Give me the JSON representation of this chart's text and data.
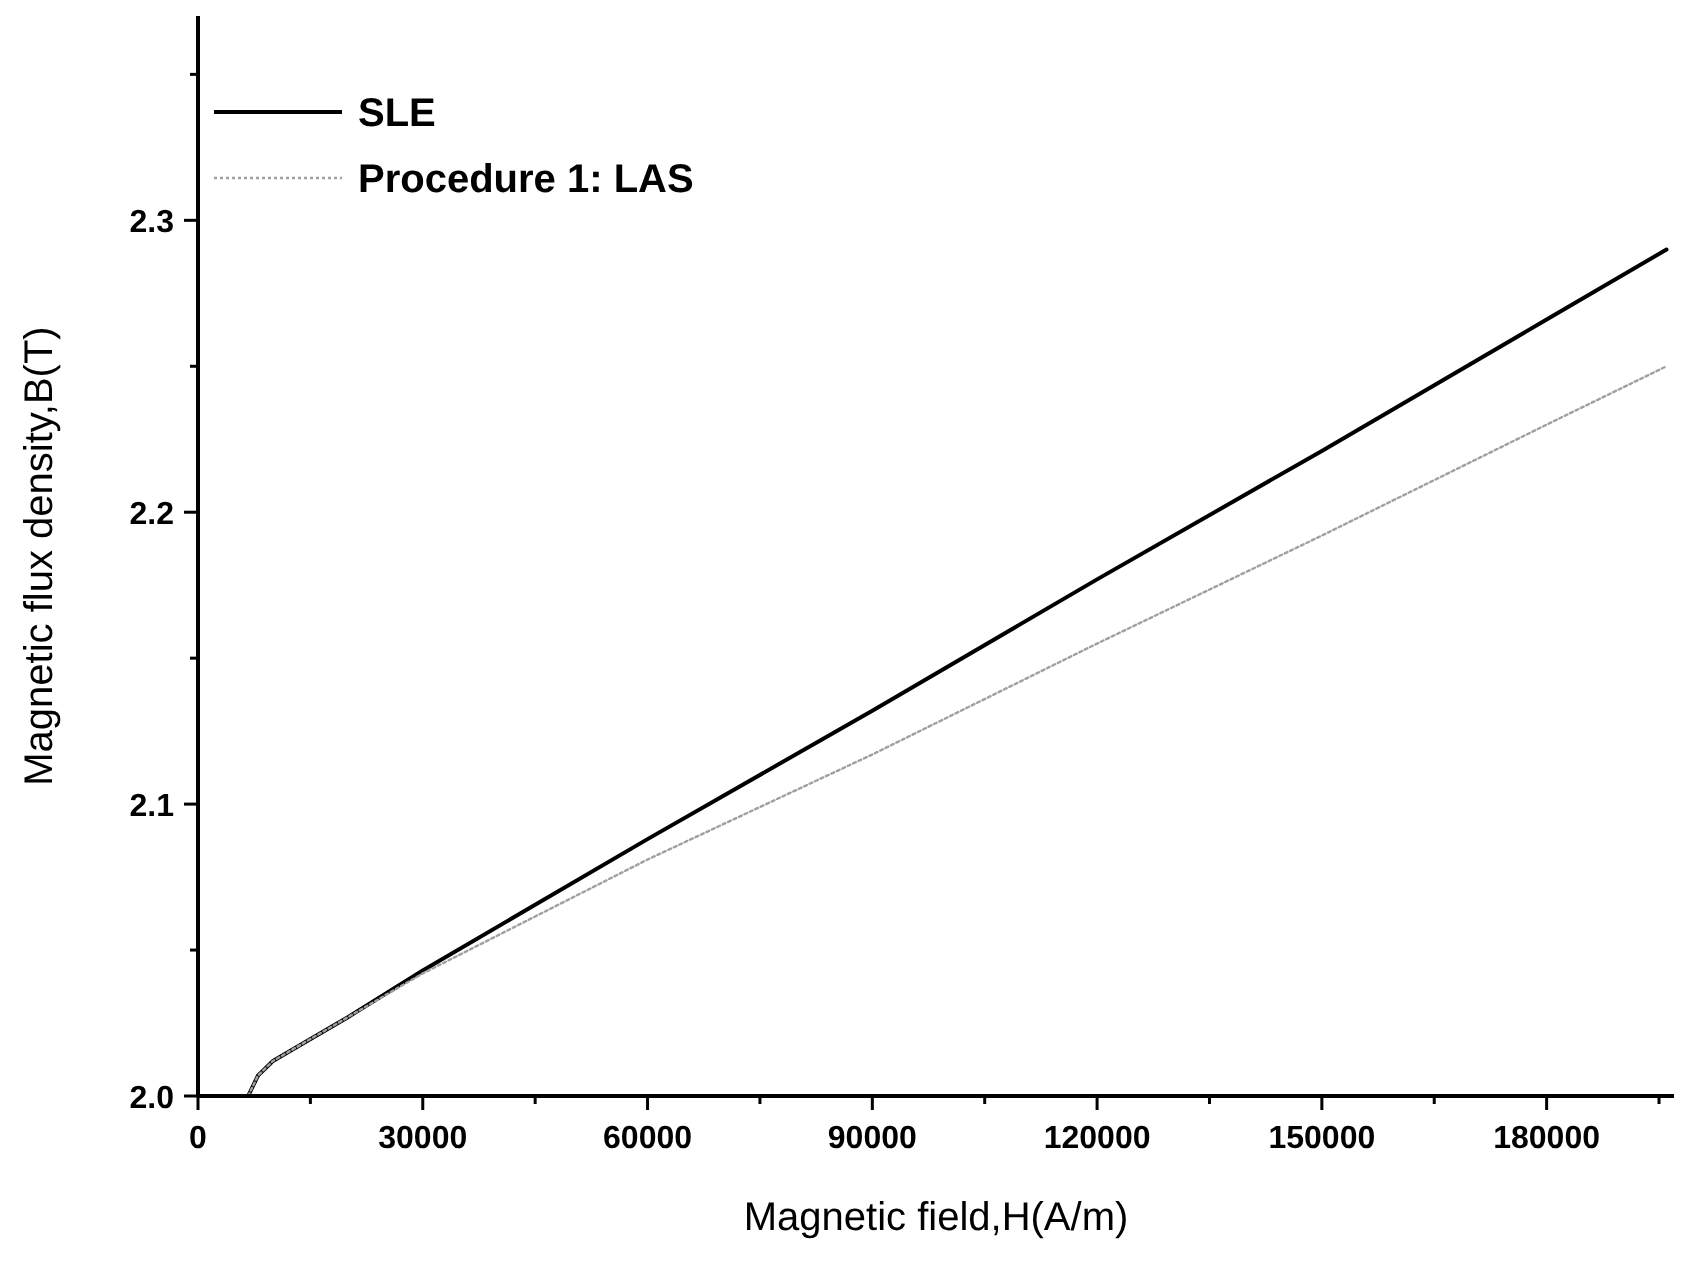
{
  "chart_data": {
    "type": "line",
    "xlabel": "Magnetic field,H(A/m)",
    "ylabel": "Magnetic flux density,B(T)",
    "xlim": [
      0,
      197000
    ],
    "ylim": [
      2.0,
      2.37
    ],
    "xticks": [
      0,
      {
        "value": 15000,
        "label": null
      },
      30000,
      {
        "value": 45000,
        "label": null
      },
      60000,
      {
        "value": 75000,
        "label": null
      },
      90000,
      {
        "value": 105000,
        "label": null
      },
      120000,
      {
        "value": 135000,
        "label": null
      },
      150000,
      {
        "value": 165000,
        "label": null
      },
      180000,
      {
        "value": 195000,
        "label": null
      }
    ],
    "yticks": [
      {
        "value": 2.0,
        "label": "2.0"
      },
      {
        "value": 2.05,
        "label": null
      },
      2.1,
      {
        "value": 2.15,
        "label": null
      },
      2.2,
      {
        "value": 2.25,
        "label": null
      },
      2.3,
      {
        "value": 2.35,
        "label": null
      }
    ],
    "grid": false,
    "legend": "top left",
    "series": [
      {
        "name": "SLE",
        "color": "#000000",
        "x": [
          6700,
          8000,
          10000,
          20000,
          30000,
          60000,
          90000,
          120000,
          150000,
          180000,
          196000
        ],
        "values": [
          2.0,
          2.007,
          2.012,
          2.027,
          2.043,
          2.088,
          2.132,
          2.177,
          2.221,
          2.266,
          2.29
        ]
      },
      {
        "name": "Procedure 1: LAS",
        "color": "#a0a0a0",
        "line_style": "dotted",
        "x": [
          6700,
          8000,
          10000,
          20000,
          30000,
          60000,
          90000,
          120000,
          150000,
          180000,
          196000
        ],
        "values": [
          2.0,
          2.007,
          2.012,
          2.027,
          2.042,
          2.081,
          2.117,
          2.155,
          2.192,
          2.23,
          2.25
        ]
      }
    ]
  }
}
